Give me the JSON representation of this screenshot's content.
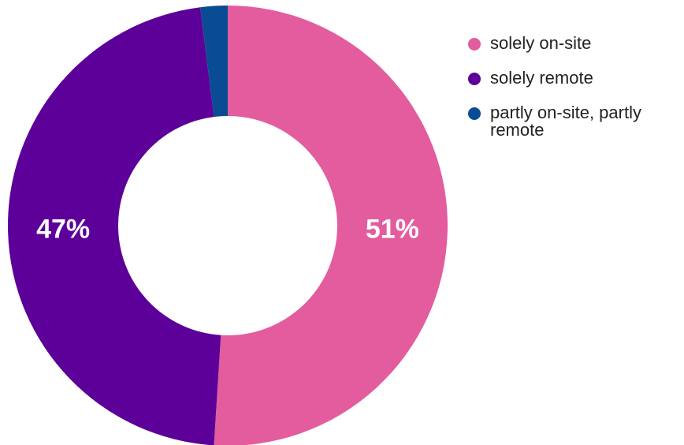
{
  "chart_data": {
    "type": "pie",
    "variant": "donut",
    "title": "",
    "categories": [
      "solely on-site",
      "solely remote",
      "partly on-site, partly remote"
    ],
    "values": [
      51,
      47,
      2
    ],
    "colors": [
      "#e35c9e",
      "#5c0099",
      "#0a4c94"
    ],
    "data_labels": [
      "51%",
      "47%",
      ""
    ],
    "legend": {
      "placement": "right",
      "entries": [
        {
          "lines": [
            "solely on-site"
          ]
        },
        {
          "lines": [
            "solely remote"
          ]
        },
        {
          "lines": [
            "partly on-site, partly",
            "remote"
          ]
        }
      ]
    }
  }
}
